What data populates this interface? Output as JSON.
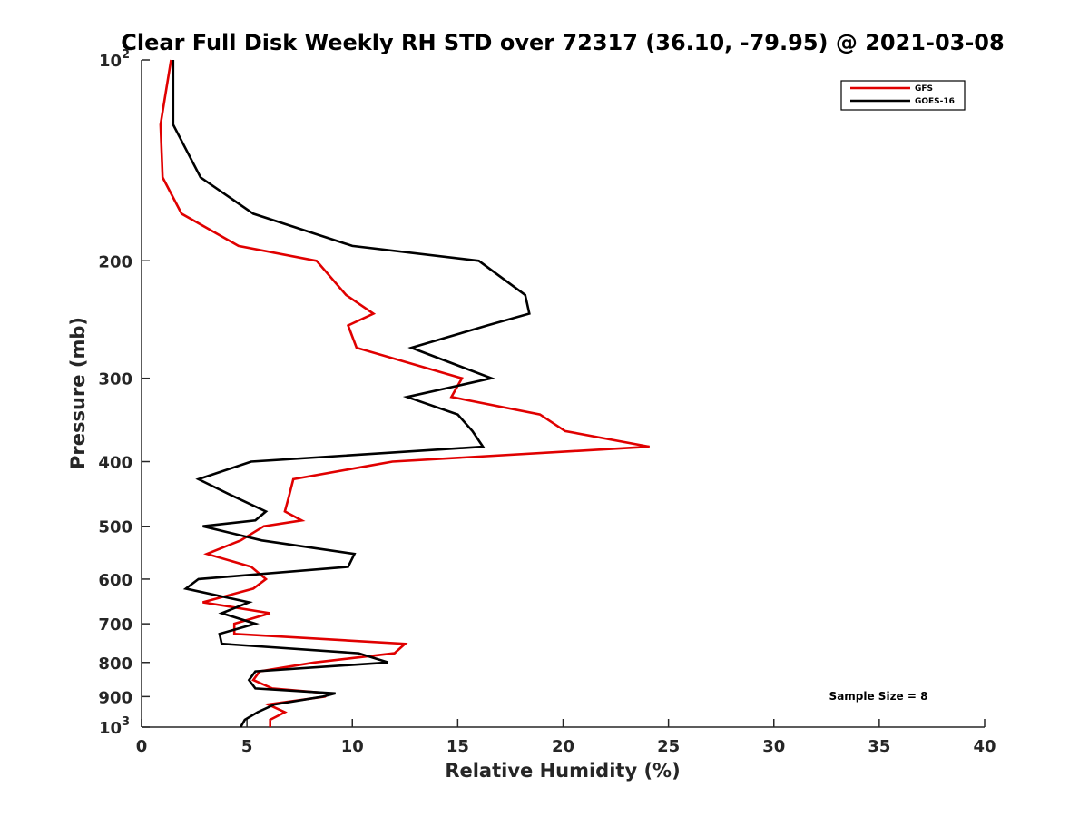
{
  "chart_data": {
    "type": "line",
    "title": "Clear Full Disk Weekly RH STD over 72317 (36.10, -79.95) @ 2021-03-08",
    "xlabel": "Relative Humidity (%)",
    "ylabel": "Pressure (mb)",
    "xlim": [
      0,
      40
    ],
    "ylim": [
      100,
      1000
    ],
    "y_scale": "log",
    "y_reversed": true,
    "x_ticks": [
      0,
      5,
      10,
      15,
      20,
      25,
      30,
      35,
      40
    ],
    "y_ticks": [
      {
        "value": 100,
        "base": "10",
        "exp": "2"
      },
      {
        "value": 200,
        "label": "200"
      },
      {
        "value": 300,
        "label": "300"
      },
      {
        "value": 400,
        "label": "400"
      },
      {
        "value": 500,
        "label": "500"
      },
      {
        "value": 600,
        "label": "600"
      },
      {
        "value": 700,
        "label": "700"
      },
      {
        "value": 800,
        "label": "800"
      },
      {
        "value": 900,
        "label": "900"
      },
      {
        "value": 1000,
        "base": "10",
        "exp": "3"
      }
    ],
    "grid": false,
    "legend_position": "top-right",
    "annotation": "Sample Size = 8",
    "series": [
      {
        "name": "GFS",
        "color": "#e00000",
        "points": [
          [
            1.4,
            100
          ],
          [
            0.9,
            125
          ],
          [
            1.0,
            150
          ],
          [
            1.9,
            170
          ],
          [
            4.6,
            190
          ],
          [
            8.3,
            200
          ],
          [
            9.7,
            225
          ],
          [
            11.0,
            240
          ],
          [
            9.8,
            250
          ],
          [
            10.2,
            270
          ],
          [
            15.2,
            300
          ],
          [
            14.7,
            320
          ],
          [
            18.9,
            340
          ],
          [
            20.1,
            360
          ],
          [
            24.1,
            380
          ],
          [
            11.9,
            400
          ],
          [
            7.2,
            425
          ],
          [
            7.0,
            450
          ],
          [
            6.8,
            475
          ],
          [
            7.6,
            490
          ],
          [
            5.8,
            500
          ],
          [
            4.7,
            525
          ],
          [
            3.1,
            550
          ],
          [
            5.2,
            575
          ],
          [
            5.9,
            600
          ],
          [
            5.3,
            620
          ],
          [
            2.9,
            650
          ],
          [
            6.1,
            675
          ],
          [
            4.4,
            700
          ],
          [
            4.4,
            725
          ],
          [
            12.5,
            750
          ],
          [
            12.0,
            775
          ],
          [
            8.2,
            800
          ],
          [
            5.6,
            825
          ],
          [
            5.3,
            850
          ],
          [
            6.2,
            875
          ],
          [
            8.9,
            890
          ],
          [
            8.7,
            900
          ],
          [
            6.0,
            925
          ],
          [
            6.8,
            950
          ],
          [
            6.1,
            975
          ],
          [
            6.1,
            1000
          ]
        ]
      },
      {
        "name": "GOES-16",
        "color": "#000000",
        "points": [
          [
            1.5,
            100
          ],
          [
            1.5,
            125
          ],
          [
            2.8,
            150
          ],
          [
            5.3,
            170
          ],
          [
            10.0,
            190
          ],
          [
            16.0,
            200
          ],
          [
            18.2,
            225
          ],
          [
            18.4,
            240
          ],
          [
            16.4,
            250
          ],
          [
            12.8,
            270
          ],
          [
            16.6,
            300
          ],
          [
            12.6,
            320
          ],
          [
            15.0,
            340
          ],
          [
            15.7,
            360
          ],
          [
            16.2,
            380
          ],
          [
            5.2,
            400
          ],
          [
            2.7,
            425
          ],
          [
            4.3,
            450
          ],
          [
            5.9,
            475
          ],
          [
            5.4,
            490
          ],
          [
            2.9,
            500
          ],
          [
            5.7,
            525
          ],
          [
            10.1,
            550
          ],
          [
            9.8,
            575
          ],
          [
            2.7,
            600
          ],
          [
            2.1,
            620
          ],
          [
            5.1,
            650
          ],
          [
            3.8,
            675
          ],
          [
            5.4,
            700
          ],
          [
            3.7,
            725
          ],
          [
            3.8,
            750
          ],
          [
            10.3,
            775
          ],
          [
            11.7,
            800
          ],
          [
            5.4,
            825
          ],
          [
            5.1,
            850
          ],
          [
            5.4,
            875
          ],
          [
            9.2,
            890
          ],
          [
            8.6,
            900
          ],
          [
            6.3,
            925
          ],
          [
            5.5,
            950
          ],
          [
            4.9,
            975
          ],
          [
            4.7,
            1000
          ]
        ]
      }
    ]
  }
}
